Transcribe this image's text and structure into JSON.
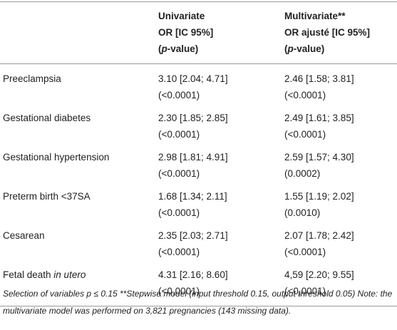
{
  "table": {
    "header": [
      {
        "lines": [
          [
            "Univariate"
          ],
          [
            "OR [IC 95%]"
          ],
          [
            "(",
            "p",
            "-value)"
          ]
        ]
      },
      {
        "lines": [
          [
            "Multivariate**"
          ],
          [
            "OR ajusté [IC 95%]"
          ],
          [
            "(",
            "p",
            "-value)"
          ]
        ]
      }
    ],
    "rows": [
      {
        "label": [
          "Preeclampsia"
        ],
        "cells": [
          [
            "3.10 [2.04; 4.71]",
            "(<0.0001)"
          ],
          [
            "2.46 [1.58; 3.81]",
            "(<0.0001)"
          ]
        ]
      },
      {
        "label": [
          "Gestational diabetes"
        ],
        "cells": [
          [
            "2.30 [1.85; 2.85]",
            "(<0.0001)"
          ],
          [
            "2.49 [1.61; 3.85]",
            "(<0.0001)"
          ]
        ]
      },
      {
        "label": [
          "Gestational hypertension"
        ],
        "cells": [
          [
            "2.98 [1.81; 4.91]",
            "(<0.0001)"
          ],
          [
            "2.59 [1.57; 4.30]",
            "(0.0002)"
          ]
        ]
      },
      {
        "label": [
          "Preterm birth <37SA"
        ],
        "cells": [
          [
            "1.68 [1.34; 2.11]",
            "(<0.0001)"
          ],
          [
            "1.55 [1.19; 2.02]",
            "(0.0010)"
          ]
        ]
      },
      {
        "label": [
          "Cesarean"
        ],
        "cells": [
          [
            "2.35 [2.03; 2.71]",
            "(<0.0001)"
          ],
          [
            "2.07 [1.78; 2.42]",
            "(<0.0001)"
          ]
        ]
      },
      {
        "label": [
          "Fetal death ",
          "in utero"
        ],
        "cells": [
          [
            "4.31 [2.16; 8.60]",
            "(<0,0001)"
          ],
          [
            "4,59 [2.20; 9.55]",
            "(<0,0001)"
          ]
        ]
      }
    ]
  },
  "footnote": "Selection of variables p ≤ 0.15 **Stepwise model (input threshold 0.15, output threshold 0.05) Note: the multivariate model was performed on 3,821 pregnancies (143 missing data)."
}
